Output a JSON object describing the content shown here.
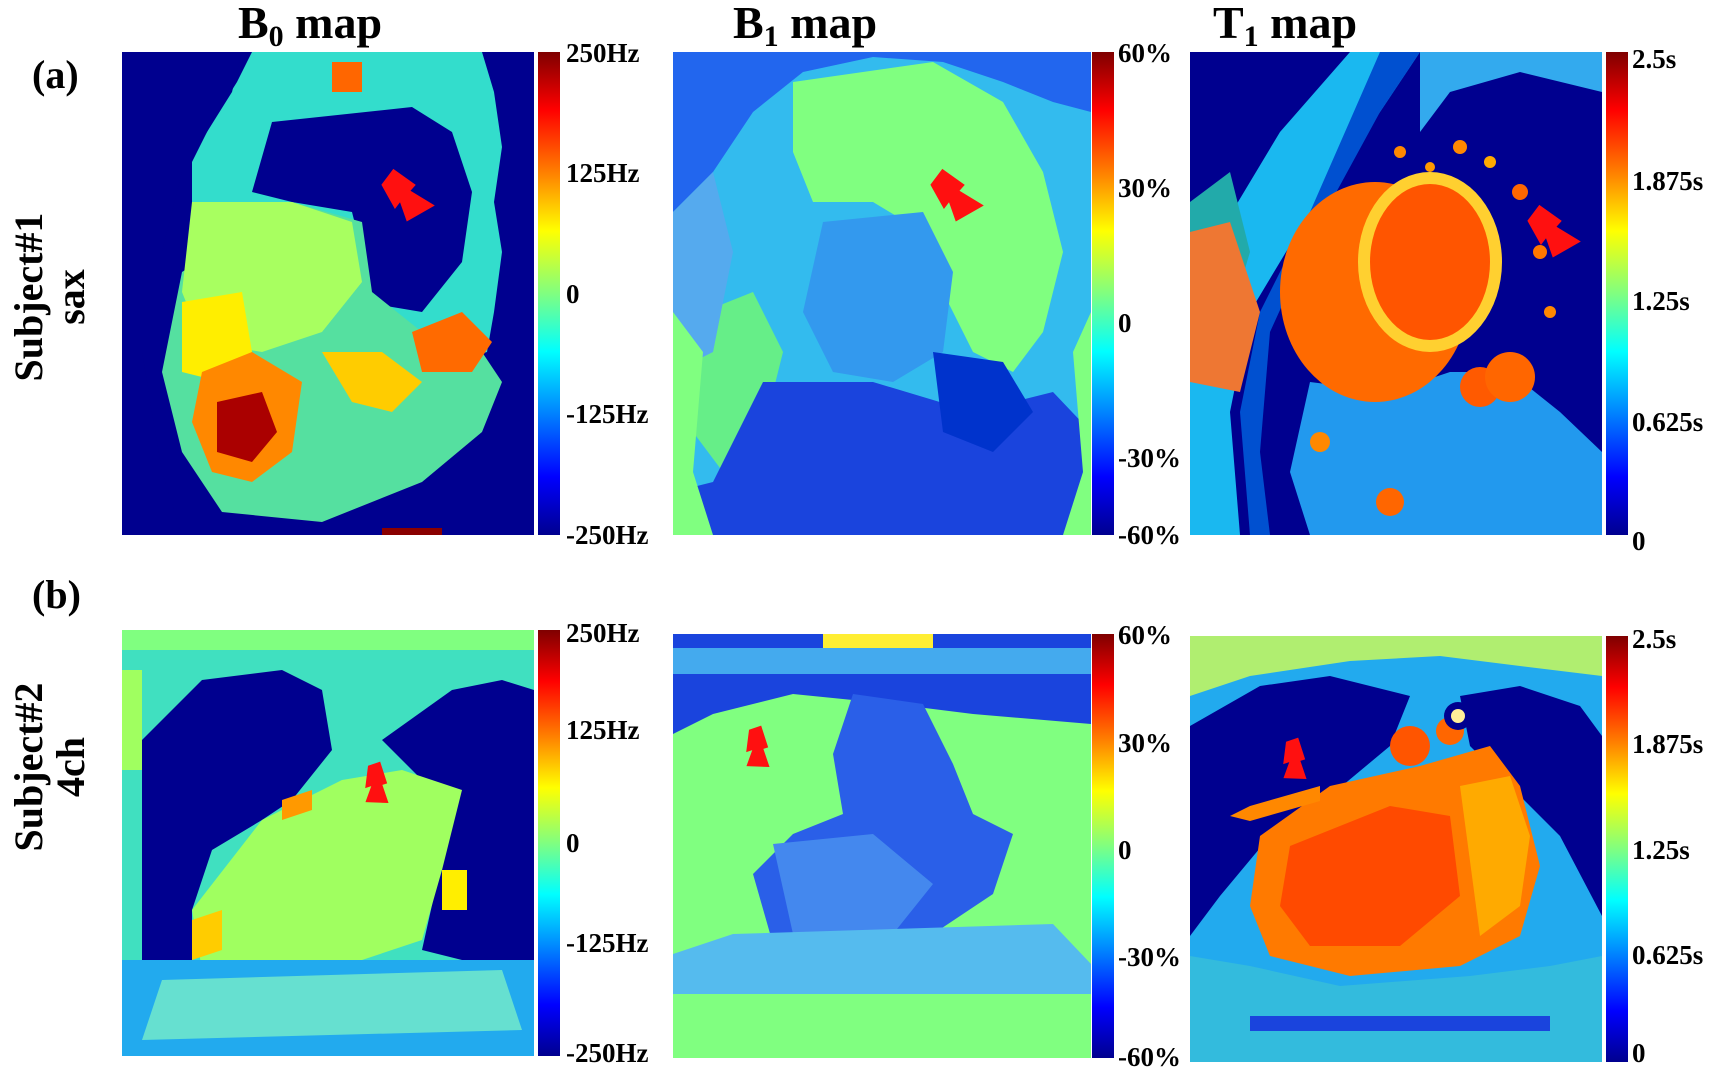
{
  "figure": {
    "columns": [
      {
        "base": "B",
        "sub": "0",
        "rest": " map"
      },
      {
        "base": "B",
        "sub": "1",
        "rest": " map"
      },
      {
        "base": "T",
        "sub": "1",
        "rest": " map"
      }
    ],
    "rows": [
      {
        "letter": "(a)",
        "line1": "Subject#1",
        "line2": "sax"
      },
      {
        "letter": "(b)",
        "line1": "Subject#2",
        "line2": "4ch"
      }
    ],
    "colorbars": {
      "b0": [
        "250Hz",
        "125Hz",
        "0",
        "-125Hz",
        "-250Hz"
      ],
      "b1": [
        "60%",
        "30%",
        "0",
        "-30%",
        "-60%"
      ],
      "t1": [
        "2.5s",
        "1.875s",
        "1.25s",
        "0.625s",
        "0"
      ]
    }
  },
  "colors": {
    "background_dark": "#00008f",
    "field_green": "#80ff80",
    "arrow": "#ff1010"
  }
}
